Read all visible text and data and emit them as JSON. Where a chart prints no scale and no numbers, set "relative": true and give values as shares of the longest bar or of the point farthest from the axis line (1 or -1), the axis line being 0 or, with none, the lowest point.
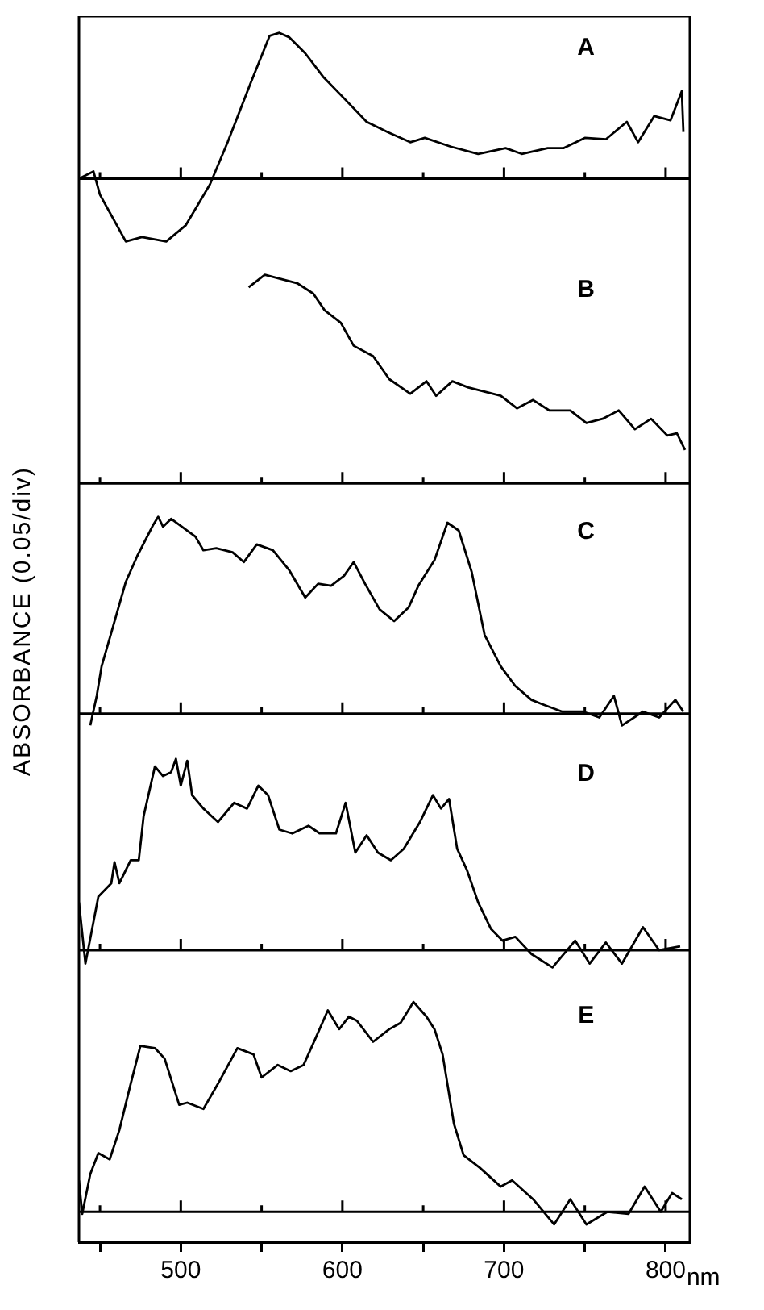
{
  "chart_data": [
    {
      "type": "line",
      "annotations": [
        "A"
      ],
      "relative": true,
      "tick_labels": false,
      "color": "#000000",
      "xlim": [
        437,
        815
      ],
      "xticks": [
        {
          "value": 450,
          "label": null
        },
        500,
        {
          "value": 550,
          "label": null
        },
        600,
        {
          "value": 650,
          "label": null
        },
        700,
        {
          "value": 750,
          "label": null
        },
        800
      ],
      "x": [
        437,
        446,
        450,
        466,
        476,
        491,
        503,
        518,
        529,
        543,
        555,
        561,
        567,
        577,
        588,
        602,
        615,
        628,
        642,
        651,
        667,
        684,
        701,
        711,
        727,
        737,
        750,
        763,
        776,
        783,
        793,
        803,
        810,
        811
      ],
      "values": [
        0,
        0.05,
        -0.11,
        -0.43,
        -0.4,
        -0.43,
        -0.32,
        -0.04,
        0.25,
        0.65,
        0.98,
        1,
        0.97,
        0.86,
        0.7,
        0.54,
        0.39,
        0.32,
        0.25,
        0.28,
        0.22,
        0.17,
        0.21,
        0.17,
        0.21,
        0.21,
        0.28,
        0.27,
        0.39,
        0.25,
        0.43,
        0.4,
        0.6,
        0.32
      ]
    },
    {
      "type": "line",
      "annotations": [
        "B"
      ],
      "relative": true,
      "tick_labels": false,
      "color": "#000000",
      "xlim": [
        437,
        815
      ],
      "xticks": [
        {
          "value": 450,
          "label": null
        },
        500,
        {
          "value": 550,
          "label": null
        },
        600,
        {
          "value": 650,
          "label": null
        },
        700,
        {
          "value": 750,
          "label": null
        },
        800
      ],
      "x": [
        542,
        552,
        562,
        572,
        582,
        589,
        599,
        607,
        619,
        629,
        642,
        652,
        658,
        668,
        678,
        698,
        708,
        718,
        728,
        741,
        751,
        761,
        771,
        781,
        791,
        801,
        807,
        812
      ],
      "values": [
        0.94,
        1,
        0.98,
        0.96,
        0.91,
        0.83,
        0.77,
        0.66,
        0.61,
        0.5,
        0.43,
        0.49,
        0.42,
        0.49,
        0.46,
        0.42,
        0.36,
        0.4,
        0.35,
        0.35,
        0.29,
        0.31,
        0.35,
        0.26,
        0.31,
        0.23,
        0.24,
        0.16
      ]
    },
    {
      "type": "line",
      "ylabel": "ABSORBANCE (0.05/div)",
      "annotations": [
        "C"
      ],
      "relative": true,
      "tick_labels": false,
      "color": "#000000",
      "xlim": [
        437,
        815
      ],
      "xticks": [
        {
          "value": 450,
          "label": null
        },
        500,
        {
          "value": 550,
          "label": null
        },
        600,
        {
          "value": 650,
          "label": null
        },
        700,
        {
          "value": 750,
          "label": null
        },
        800
      ],
      "x": [
        444,
        448,
        451,
        458,
        466,
        473,
        483,
        486,
        489,
        494,
        504,
        509,
        514,
        522,
        532,
        539,
        547,
        557,
        567,
        577,
        585,
        593,
        601,
        607,
        614,
        623,
        632,
        641,
        647,
        657,
        665,
        672,
        680,
        688,
        698,
        707,
        717,
        723,
        736,
        749,
        759,
        768,
        773,
        786,
        796,
        806,
        811
      ],
      "values": [
        -0.06,
        0.09,
        0.24,
        0.44,
        0.67,
        0.8,
        0.96,
        1,
        0.95,
        0.99,
        0.93,
        0.9,
        0.83,
        0.84,
        0.82,
        0.77,
        0.86,
        0.83,
        0.73,
        0.59,
        0.66,
        0.65,
        0.7,
        0.77,
        0.66,
        0.53,
        0.47,
        0.54,
        0.65,
        0.78,
        0.97,
        0.93,
        0.72,
        0.4,
        0.24,
        0.14,
        0.07,
        0.05,
        0.01,
        0.01,
        -0.02,
        0.09,
        -0.06,
        0.01,
        -0.02,
        0.07,
        0.01
      ]
    },
    {
      "type": "line",
      "annotations": [
        "D"
      ],
      "relative": true,
      "tick_labels": false,
      "color": "#000000",
      "xlim": [
        437,
        815
      ],
      "xticks": [
        {
          "value": 450,
          "label": null
        },
        500,
        {
          "value": 550,
          "label": null
        },
        600,
        {
          "value": 650,
          "label": null
        },
        700,
        {
          "value": 750,
          "label": null
        },
        800
      ],
      "x": [
        437,
        441,
        449,
        457,
        459,
        462,
        469,
        474,
        477,
        484,
        489,
        494,
        497,
        500,
        504,
        507,
        514,
        523,
        533,
        541,
        548,
        554,
        561,
        569,
        579,
        586,
        596,
        602,
        608,
        615,
        622,
        630,
        638,
        648,
        656,
        661,
        666,
        671,
        677,
        684,
        692,
        699,
        707,
        717,
        730,
        744,
        753,
        763,
        773,
        786,
        796,
        809
      ],
      "values": [
        0.25,
        -0.07,
        0.28,
        0.35,
        0.46,
        0.35,
        0.47,
        0.47,
        0.7,
        0.96,
        0.91,
        0.93,
        1,
        0.86,
        0.99,
        0.81,
        0.74,
        0.67,
        0.77,
        0.74,
        0.86,
        0.81,
        0.63,
        0.61,
        0.65,
        0.61,
        0.61,
        0.77,
        0.51,
        0.6,
        0.51,
        0.47,
        0.53,
        0.67,
        0.81,
        0.74,
        0.79,
        0.53,
        0.42,
        0.25,
        0.11,
        0.05,
        0.07,
        -0.02,
        -0.09,
        0.05,
        -0.07,
        0.04,
        -0.07,
        0.12,
        0,
        0.02
      ]
    },
    {
      "type": "line",
      "xlabel": "nm",
      "annotations": [
        "E"
      ],
      "relative": true,
      "tick_labels": "x",
      "color": "#000000",
      "xlim": [
        437,
        815
      ],
      "xticks": [
        {
          "value": 450,
          "label": null
        },
        500,
        {
          "value": 550,
          "label": null
        },
        600,
        {
          "value": 650,
          "label": null
        },
        700,
        {
          "value": 750,
          "label": null
        },
        800
      ],
      "x": [
        437,
        439,
        444,
        449,
        456,
        462,
        469,
        475,
        484,
        490,
        499,
        504,
        514,
        523,
        535,
        545,
        550,
        560,
        568,
        576,
        583,
        591,
        598,
        604,
        609,
        619,
        629,
        636,
        644,
        652,
        657,
        662,
        669,
        675,
        685,
        698,
        705,
        718,
        731,
        741,
        751,
        764,
        777,
        787,
        797,
        804,
        810
      ],
      "values": [
        0.15,
        -0.01,
        0.18,
        0.28,
        0.25,
        0.39,
        0.61,
        0.79,
        0.78,
        0.73,
        0.51,
        0.52,
        0.49,
        0.61,
        0.78,
        0.75,
        0.64,
        0.7,
        0.67,
        0.7,
        0.82,
        0.96,
        0.87,
        0.93,
        0.91,
        0.81,
        0.87,
        0.9,
        1,
        0.93,
        0.87,
        0.75,
        0.42,
        0.27,
        0.21,
        0.12,
        0.15,
        0.06,
        -0.06,
        0.06,
        -0.06,
        0,
        -0.01,
        0.12,
        0,
        0.09,
        0.06
      ]
    }
  ]
}
